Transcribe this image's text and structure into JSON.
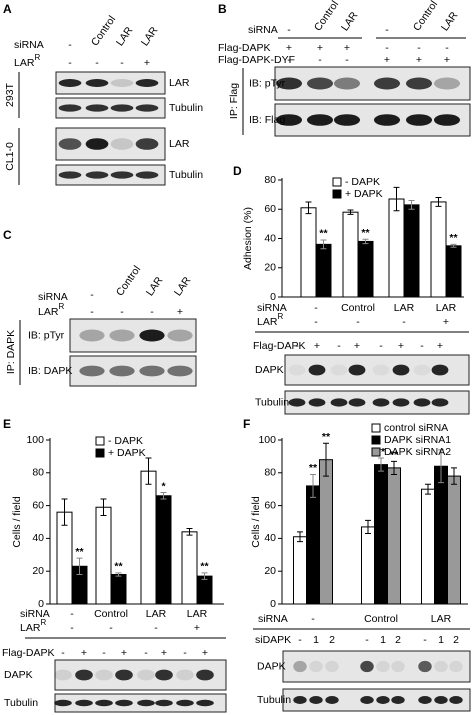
{
  "panel_a": {
    "label": "A",
    "header": {
      "label": "siRNA",
      "lanes": [
        "-",
        "Control",
        "LAR",
        "LAR"
      ]
    },
    "rescue": {
      "label": "LAR",
      "sup": "R",
      "lanes": [
        "-",
        "-",
        "-",
        "+"
      ]
    },
    "cell_lines": [
      {
        "name": "293T",
        "blots": [
          "LAR",
          "Tubulin"
        ]
      },
      {
        "name": "CL1-0",
        "blots": [
          "LAR",
          "Tubulin"
        ]
      }
    ]
  },
  "panel_b": {
    "label": "B",
    "header": {
      "label": "siRNA",
      "lanes": [
        "-",
        "Control",
        "LAR",
        "-",
        "Control",
        "LAR"
      ]
    },
    "rows": [
      {
        "label": "Flag-DAPK",
        "lanes": [
          "+",
          "+",
          "+",
          "-",
          "-",
          "-"
        ]
      },
      {
        "label": "Flag-DAPK-DYF",
        "lanes": [
          "-",
          "-",
          "-",
          "+",
          "+",
          "+"
        ]
      }
    ],
    "ip": "IP: Flag",
    "blots": [
      "IB: pTyr",
      "IB: Flag"
    ]
  },
  "panel_c": {
    "label": "C",
    "header": {
      "label": "siRNA",
      "lanes": [
        "-",
        "Control",
        "LAR",
        "LAR"
      ]
    },
    "rescue": {
      "label": "LAR",
      "sup": "R",
      "lanes": [
        "-",
        "-",
        "-",
        "+"
      ]
    },
    "ip": "IP: DAPK",
    "blots": [
      "IB: pTyr",
      "IB: DAPK"
    ]
  },
  "chart_data": [
    {
      "type": "bar",
      "panel_label": "D",
      "y_label": "Adhesion (%)",
      "ylim": [
        0,
        80
      ],
      "yticks": [
        0,
        20,
        40,
        60,
        80
      ],
      "category_label": "siRNA",
      "categories": [
        "-",
        "Control",
        "LAR",
        "LAR"
      ],
      "rows": [
        {
          "label": "LAR",
          "sup": "R",
          "values": [
            "-",
            "-",
            "-",
            "+"
          ]
        }
      ],
      "series": [
        {
          "name": "- DAPK",
          "color": "#ffffff",
          "values": [
            61,
            58,
            67,
            65
          ],
          "errors": [
            4,
            1.5,
            8,
            3
          ]
        },
        {
          "name": "+ DAPK",
          "color": "#000000",
          "values": [
            36,
            38,
            63,
            35
          ],
          "errors": [
            3,
            1.5,
            3,
            1
          ],
          "significance": [
            "**",
            "**",
            null,
            "**"
          ]
        }
      ],
      "lane_row": {
        "label": "Flag-DAPK",
        "values": [
          "-",
          "+",
          "-",
          "+",
          "-",
          "+",
          "-",
          "+"
        ]
      },
      "blots": [
        "DAPK",
        "Tubulin"
      ]
    },
    {
      "type": "bar",
      "panel_label": "E",
      "y_label": "Cells / field",
      "ylim": [
        0,
        100
      ],
      "yticks": [
        0,
        20,
        40,
        60,
        80,
        100
      ],
      "category_label": "siRNA",
      "categories": [
        "-",
        "Control",
        "LAR",
        "LAR"
      ],
      "rows": [
        {
          "label": "LAR",
          "sup": "R",
          "values": [
            "-",
            "-",
            "-",
            "+"
          ]
        }
      ],
      "series": [
        {
          "name": "- DAPK",
          "color": "#ffffff",
          "values": [
            56,
            59,
            81,
            44
          ],
          "errors": [
            8,
            5,
            8,
            2
          ]
        },
        {
          "name": "+ DAPK",
          "color": "#000000",
          "values": [
            23,
            18,
            66,
            17
          ],
          "errors": [
            5,
            1,
            2,
            2
          ],
          "significance": [
            "**",
            "**",
            "*",
            "**"
          ]
        }
      ],
      "lane_row": {
        "label": "Flag-DAPK",
        "values": [
          "-",
          "+",
          "-",
          "+",
          "-",
          "+",
          "-",
          "+"
        ]
      },
      "blots": [
        "DAPK",
        "Tubulin"
      ]
    },
    {
      "type": "bar",
      "panel_label": "F",
      "y_label": "Cells / field",
      "ylim": [
        0,
        100
      ],
      "yticks": [
        0,
        20,
        40,
        60,
        80,
        100
      ],
      "category_label": "siRNA",
      "categories": [
        "-",
        "Control",
        "LAR"
      ],
      "rows": [],
      "series": [
        {
          "name": "control siRNA",
          "color": "#ffffff",
          "values": [
            41,
            47,
            70
          ],
          "errors": [
            3,
            4,
            3
          ]
        },
        {
          "name": "DAPK siRNA1",
          "color": "#000000",
          "values": [
            72,
            85,
            84
          ],
          "errors": [
            7,
            4,
            10
          ],
          "significance": [
            "**",
            "**",
            null
          ]
        },
        {
          "name": "DAPK siRNA2",
          "color": "#999999",
          "values": [
            88,
            83,
            78
          ],
          "errors": [
            10,
            4,
            5
          ],
          "significance": [
            "**",
            "**",
            null
          ]
        }
      ],
      "lane_row": {
        "label": "siDAPK",
        "values": [
          "-",
          "1",
          "2",
          "-",
          "1",
          "2",
          "-",
          "1",
          "2"
        ]
      },
      "blots": [
        "DAPK",
        "Tubulin"
      ]
    }
  ]
}
